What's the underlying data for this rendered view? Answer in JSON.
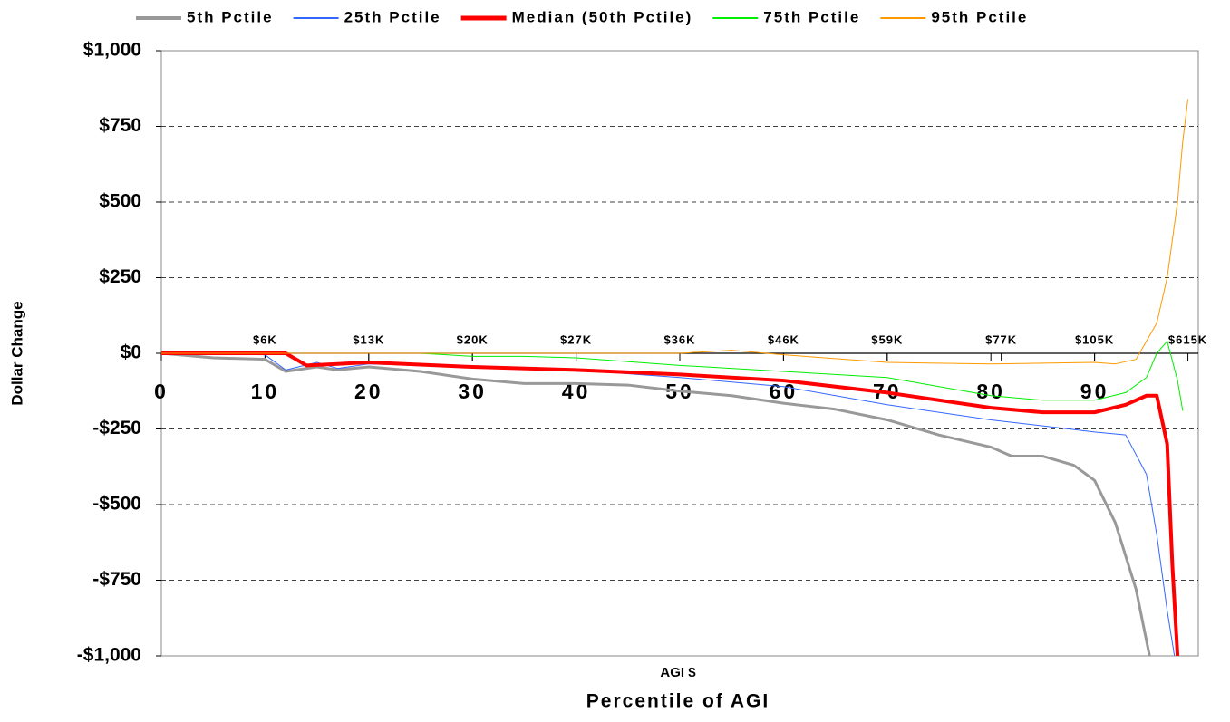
{
  "chart_data": {
    "type": "line",
    "title": "AGI $",
    "x_label": "Percentile of AGI",
    "y_label": "Dollar Change",
    "xlim": [
      0,
      100
    ],
    "ylim": [
      -1000,
      1000
    ],
    "xticks": [
      0,
      10,
      20,
      30,
      40,
      50,
      60,
      70,
      80,
      90
    ],
    "yticks": [
      {
        "value": -1000,
        "label": "-$1,000"
      },
      {
        "value": -750,
        "label": "-$750"
      },
      {
        "value": -500,
        "label": "-$500"
      },
      {
        "value": -250,
        "label": "-$250"
      },
      {
        "value": 0,
        "label": "$0"
      },
      {
        "value": 250,
        "label": "$250"
      },
      {
        "value": 500,
        "label": "$500"
      },
      {
        "value": 750,
        "label": "$750"
      },
      {
        "value": 1000,
        "label": "$1,000"
      }
    ],
    "x2ticks": [
      {
        "value": 10,
        "label": "$6K"
      },
      {
        "value": 20,
        "label": "$13K"
      },
      {
        "value": 30,
        "label": "$20K"
      },
      {
        "value": 40,
        "label": "$27K"
      },
      {
        "value": 50,
        "label": "$36K"
      },
      {
        "value": 60,
        "label": "$46K"
      },
      {
        "value": 70,
        "label": "$59K"
      },
      {
        "value": 81,
        "label": "$77K"
      },
      {
        "value": 90,
        "label": "$105K"
      },
      {
        "value": 99,
        "label": "$615K"
      }
    ],
    "grid": true,
    "legend": "top",
    "series": [
      {
        "name": "5th Pctile",
        "color": "#999999",
        "width": 3,
        "x": [
          0,
          5,
          10,
          12,
          15,
          17,
          20,
          25,
          30,
          35,
          40,
          45,
          50,
          55,
          60,
          65,
          70,
          75,
          80,
          82,
          85,
          88,
          90,
          92,
          94,
          95.3
        ],
        "values": [
          0,
          -15,
          -20,
          -60,
          -45,
          -55,
          -45,
          -60,
          -85,
          -100,
          -100,
          -105,
          -125,
          -140,
          -165,
          -185,
          -220,
          -270,
          -310,
          -340,
          -340,
          -370,
          -420,
          -560,
          -780,
          -1000
        ]
      },
      {
        "name": "25th Pctile",
        "color": "#3366ff",
        "width": 1,
        "x": [
          0,
          10,
          12,
          15,
          17,
          20,
          30,
          40,
          50,
          60,
          70,
          80,
          90,
          93,
          95,
          96,
          97,
          97.7
        ],
        "values": [
          0,
          -5,
          -55,
          -30,
          -50,
          -35,
          -45,
          -55,
          -80,
          -110,
          -170,
          -220,
          -260,
          -270,
          -400,
          -600,
          -850,
          -1000
        ]
      },
      {
        "name": "Median (50th Pctile)",
        "color": "#ff0000",
        "width": 4,
        "x": [
          0,
          12,
          14,
          17,
          20,
          30,
          40,
          50,
          60,
          70,
          80,
          85,
          90,
          93,
          95,
          96,
          97,
          97.5,
          98
        ],
        "values": [
          0,
          0,
          -40,
          -35,
          -30,
          -45,
          -55,
          -70,
          -90,
          -130,
          -180,
          -195,
          -195,
          -170,
          -140,
          -140,
          -300,
          -700,
          -1000
        ]
      },
      {
        "name": "75th Pctile",
        "color": "#00ee00",
        "width": 1,
        "x": [
          0,
          25,
          30,
          35,
          40,
          50,
          60,
          70,
          75,
          80,
          85,
          90,
          93,
          95,
          96,
          97,
          98,
          98.5
        ],
        "values": [
          0,
          0,
          -10,
          -10,
          -15,
          -40,
          -60,
          -80,
          -110,
          -140,
          -155,
          -155,
          -130,
          -80,
          0,
          40,
          -90,
          -190
        ]
      },
      {
        "name": "95th Pctile",
        "color": "#ff9900",
        "width": 1,
        "x": [
          0,
          30,
          50,
          55,
          60,
          70,
          80,
          90,
          92,
          94,
          95,
          96,
          97,
          98,
          98.5,
          99
        ],
        "values": [
          0,
          0,
          0,
          10,
          -5,
          -30,
          -35,
          -30,
          -35,
          -20,
          40,
          100,
          250,
          500,
          700,
          840
        ]
      }
    ]
  }
}
